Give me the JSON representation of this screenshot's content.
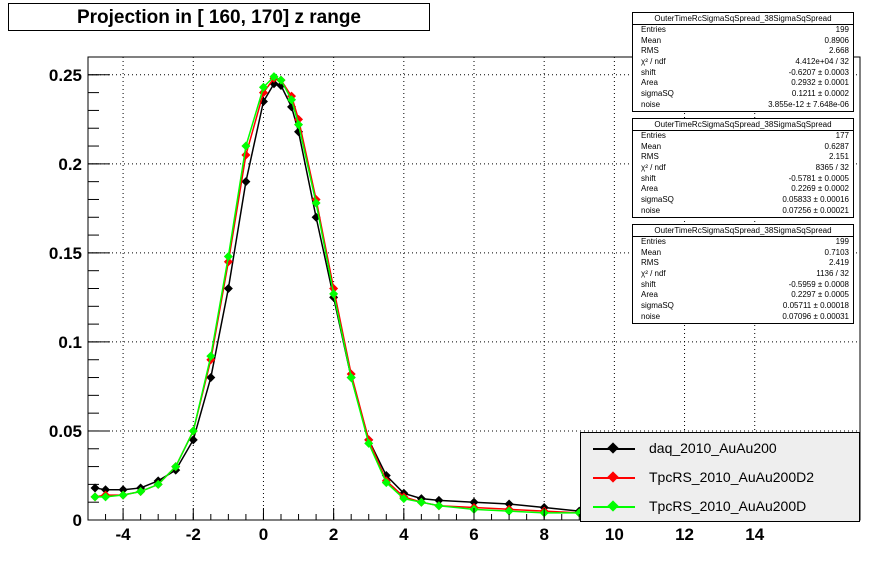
{
  "title": "Projection in [ 160, 170] z range",
  "chart_data": {
    "type": "scatter",
    "title": "Projection in [ 160, 170] z range",
    "xlabel": "",
    "ylabel": "",
    "xlim": [
      -5,
      17
    ],
    "ylim": [
      0,
      0.26
    ],
    "xticks": [
      -4,
      -2,
      0,
      2,
      4,
      6,
      8,
      10,
      12,
      14
    ],
    "xtick_labels": [
      "-4",
      "-2",
      "0",
      "2",
      "4",
      "6",
      "8",
      "10",
      "12",
      "14"
    ],
    "yticks": [
      0,
      0.05,
      0.1,
      0.15,
      0.2,
      0.25
    ],
    "ytick_labels": [
      "0",
      "0.05",
      "0.1",
      "0.15",
      "0.2",
      "0.25"
    ],
    "grid": true,
    "legend_position": "bottom-right",
    "series": [
      {
        "name": "daq_2010_AuAu200",
        "color": "#000000",
        "x": [
          -4.8,
          -4.5,
          -4.0,
          -3.5,
          -3.0,
          -2.5,
          -2.0,
          -1.5,
          -1.0,
          -0.5,
          0.0,
          0.3,
          0.5,
          0.8,
          1.0,
          1.5,
          2.0,
          2.5,
          3.0,
          3.5,
          4.0,
          4.5,
          5.0,
          6.0,
          7.0,
          8.0,
          9.0
        ],
        "y": [
          0.018,
          0.017,
          0.017,
          0.018,
          0.022,
          0.028,
          0.045,
          0.08,
          0.13,
          0.19,
          0.235,
          0.245,
          0.244,
          0.232,
          0.218,
          0.17,
          0.125,
          0.08,
          0.045,
          0.025,
          0.015,
          0.012,
          0.011,
          0.01,
          0.009,
          0.007,
          0.005
        ]
      },
      {
        "name": "TpcRS_2010_AuAu200D2",
        "color": "#ff0000",
        "x": [
          -4.8,
          -4.5,
          -4.0,
          -3.5,
          -3.0,
          -2.5,
          -2.0,
          -1.5,
          -1.0,
          -0.5,
          0.0,
          0.3,
          0.5,
          0.8,
          1.0,
          1.5,
          2.0,
          2.5,
          3.0,
          3.5,
          4.0,
          4.5,
          5.0,
          6.0,
          7.0,
          8.0,
          9.0
        ],
        "y": [
          0.013,
          0.014,
          0.014,
          0.016,
          0.02,
          0.03,
          0.05,
          0.09,
          0.145,
          0.205,
          0.24,
          0.248,
          0.247,
          0.238,
          0.225,
          0.18,
          0.13,
          0.082,
          0.045,
          0.022,
          0.013,
          0.01,
          0.008,
          0.007,
          0.006,
          0.005,
          0.004
        ]
      },
      {
        "name": "TpcRS_2010_AuAu200D",
        "color": "#00ff00",
        "x": [
          -4.8,
          -4.5,
          -4.0,
          -3.5,
          -3.0,
          -2.5,
          -2.0,
          -1.5,
          -1.0,
          -0.5,
          0.0,
          0.3,
          0.5,
          0.8,
          1.0,
          1.5,
          2.0,
          2.5,
          3.0,
          3.5,
          4.0,
          4.5,
          5.0,
          6.0,
          7.0,
          8.0,
          9.0
        ],
        "y": [
          0.013,
          0.013,
          0.014,
          0.016,
          0.02,
          0.03,
          0.05,
          0.092,
          0.148,
          0.21,
          0.243,
          0.249,
          0.247,
          0.236,
          0.222,
          0.178,
          0.127,
          0.08,
          0.043,
          0.021,
          0.012,
          0.01,
          0.008,
          0.006,
          0.005,
          0.004,
          0.004
        ]
      }
    ]
  },
  "stats_boxes": [
    {
      "header": "OuterTimeRcSigmaSqSpread_38SigmaSqSpread",
      "rows": [
        {
          "k": "Entries",
          "v": "199"
        },
        {
          "k": "Mean",
          "v": "0.8906"
        },
        {
          "k": "RMS",
          "v": "2.668"
        },
        {
          "k": "χ² / ndf",
          "v": "4.412e+04 / 32"
        },
        {
          "k": "shift",
          "v": "-0.6207 ± 0.0003"
        },
        {
          "k": "Area",
          "v": "0.2932 ± 0.0001"
        },
        {
          "k": "sigmaSQ",
          "v": "0.1211 ± 0.0002"
        },
        {
          "k": "noise",
          "v": "3.855e-12 ± 7.648e-06"
        }
      ]
    },
    {
      "header": "OuterTimeRcSigmaSqSpread_38SigmaSqSpread",
      "rows": [
        {
          "k": "Entries",
          "v": "177"
        },
        {
          "k": "Mean",
          "v": "0.6287"
        },
        {
          "k": "RMS",
          "v": "2.151"
        },
        {
          "k": "χ² / ndf",
          "v": "8365 / 32"
        },
        {
          "k": "shift",
          "v": "-0.5781 ± 0.0005"
        },
        {
          "k": "Area",
          "v": "0.2269 ± 0.0002"
        },
        {
          "k": "sigmaSQ",
          "v": "0.05833 ± 0.00016"
        },
        {
          "k": "noise",
          "v": "0.07256 ± 0.00021"
        }
      ]
    },
    {
      "header": "OuterTimeRcSigmaSqSpread_38SigmaSqSpread",
      "rows": [
        {
          "k": "Entries",
          "v": "199"
        },
        {
          "k": "Mean",
          "v": "0.7103"
        },
        {
          "k": "RMS",
          "v": "2.419"
        },
        {
          "k": "χ² / ndf",
          "v": "1136 / 32"
        },
        {
          "k": "shift",
          "v": "-0.5959 ± 0.0008"
        },
        {
          "k": "Area",
          "v": "0.2297 ± 0.0005"
        },
        {
          "k": "sigmaSQ",
          "v": "0.05711 ± 0.00018"
        },
        {
          "k": "noise",
          "v": "0.07096 ± 0.00031"
        }
      ]
    }
  ],
  "legend": [
    {
      "label": "daq_2010_AuAu200",
      "color": "#000000"
    },
    {
      "label": "TpcRS_2010_AuAu200D2",
      "color": "#ff0000"
    },
    {
      "label": "TpcRS_2010_AuAu200D",
      "color": "#00ff00"
    }
  ]
}
